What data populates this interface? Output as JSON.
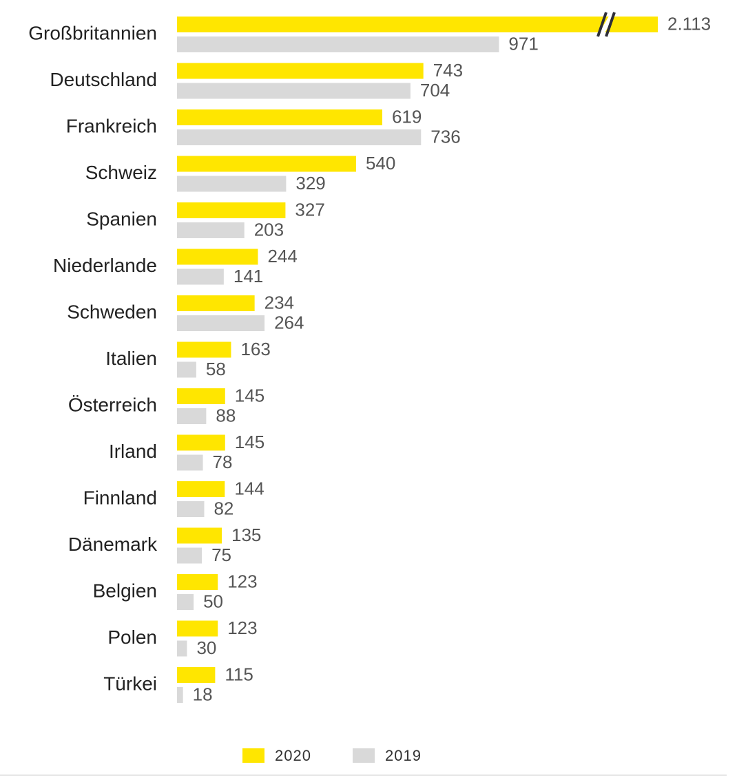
{
  "chart_data": {
    "type": "bar",
    "orientation": "horizontal",
    "categories": [
      "Großbritannien",
      "Deutschland",
      "Frankreich",
      "Schweiz",
      "Spanien",
      "Niederlande",
      "Schweden",
      "Italien",
      "Österreich",
      "Irland",
      "Finnland",
      "Dänemark",
      "Belgien",
      "Polen",
      "Türkei"
    ],
    "series": [
      {
        "name": "2020",
        "color": "#ffe600",
        "values": [
          2113,
          743,
          619,
          540,
          327,
          244,
          234,
          163,
          145,
          145,
          144,
          135,
          123,
          123,
          115
        ],
        "value_labels": [
          "2.113",
          "743",
          "619",
          "540",
          "327",
          "244",
          "234",
          "163",
          "145",
          "145",
          "144",
          "135",
          "123",
          "123",
          "115"
        ]
      },
      {
        "name": "2019",
        "color": "#d9d9d9",
        "values": [
          971,
          704,
          736,
          329,
          203,
          141,
          264,
          58,
          88,
          78,
          82,
          75,
          50,
          30,
          18
        ]
      }
    ],
    "xlim": [
      0,
      1450
    ],
    "axis_break": true,
    "legend": "bottom"
  }
}
